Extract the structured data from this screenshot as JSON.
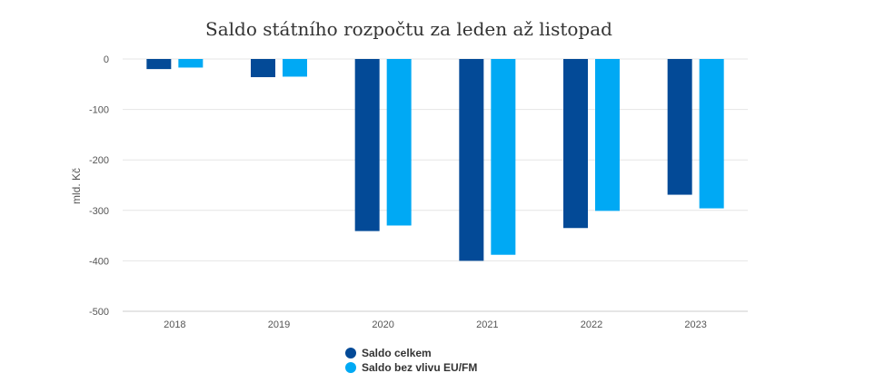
{
  "chart_data": {
    "type": "bar",
    "title": "Saldo státního rozpočtu za leden až listopad",
    "xlabel": "",
    "ylabel": "mld. Kč",
    "categories": [
      "2018",
      "2019",
      "2020",
      "2021",
      "2022",
      "2023"
    ],
    "series": [
      {
        "name": "Saldo celkem",
        "color": "#034a97",
        "values": [
          -20,
          -36,
          -341,
          -400,
          -335,
          -269
        ]
      },
      {
        "name": "Saldo bez vlivu EU/FM",
        "color": "#00a9f4",
        "values": [
          -17,
          -35,
          -330,
          -388,
          -301,
          -296
        ]
      }
    ],
    "ylim": [
      -500,
      0
    ],
    "yticks": [
      0,
      -100,
      -200,
      -300,
      -400,
      -500
    ],
    "grid": true,
    "legend_position": "bottom"
  }
}
